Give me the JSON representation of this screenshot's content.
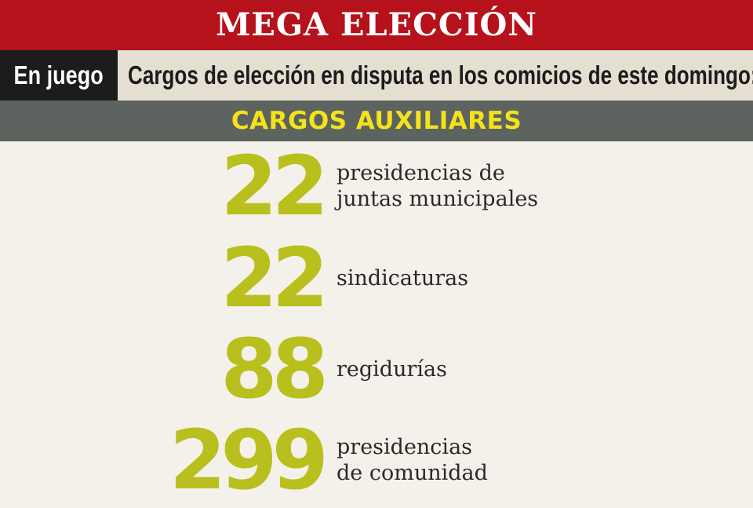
{
  "header": {
    "title": "MEGA ELECCIÓN",
    "tag": "En juego",
    "description": "Cargos de elección en disputa en los comicios de este domingo:",
    "section": "CARGOS AUXILIARES"
  },
  "items": [
    {
      "number": "22",
      "label_lines": [
        "presidencias de",
        "juntas municipales"
      ]
    },
    {
      "number": "22",
      "label_lines": [
        "sindicaturas"
      ]
    },
    {
      "number": "88",
      "label_lines": [
        "regidurías"
      ]
    },
    {
      "number": "299",
      "label_lines": [
        "presidencias",
        "de comunidad"
      ]
    }
  ],
  "colors": {
    "banner": "#b5121b",
    "tag_background": "#1c1c1c",
    "subbar_background": "#e4dfd1",
    "section_background": "#5d635f",
    "section_text": "#f4e21c",
    "number": "#b9bf1c",
    "page_background": "#f3f1ea"
  }
}
